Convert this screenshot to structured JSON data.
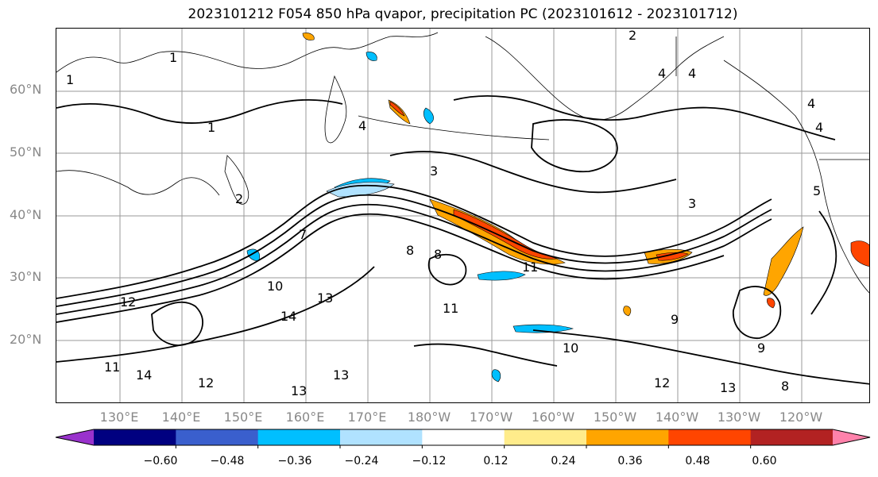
{
  "title": "2023101212 F054 850 hPa qvapor, precipitation PC (2023101612 - 2023101712)",
  "lat_labels": [
    "60°N",
    "50°N",
    "40°N",
    "30°N",
    "20°N"
  ],
  "lon_labels": [
    "130°E",
    "140°E",
    "150°E",
    "160°E",
    "170°E",
    "180°W",
    "170°W",
    "160°W",
    "150°W",
    "140°W",
    "130°W",
    "120°W"
  ],
  "contour_labels": [
    "1",
    "1",
    "2",
    "3",
    "4",
    "4",
    "4",
    "4",
    "4",
    "2",
    "1",
    "3",
    "5",
    "7",
    "8",
    "8",
    "10",
    "11",
    "12",
    "13",
    "14",
    "14",
    "13",
    "12",
    "13",
    "11",
    "10",
    "9",
    "9",
    "8",
    "12",
    "13",
    "11"
  ],
  "colorbar": {
    "colors": [
      "#9932cc",
      "#000080",
      "#3a5fcd",
      "#00bfff",
      "#b0e2ff",
      "#ffffff",
      "#ffec8b",
      "#ffa500",
      "#ff4500",
      "#b22222",
      "#ff82ab"
    ],
    "tick_labels": [
      "−0.60",
      "−0.48",
      "−0.36",
      "−0.24",
      "−0.12",
      "0.12",
      "0.24",
      "0.36",
      "0.48",
      "0.60"
    ]
  }
}
